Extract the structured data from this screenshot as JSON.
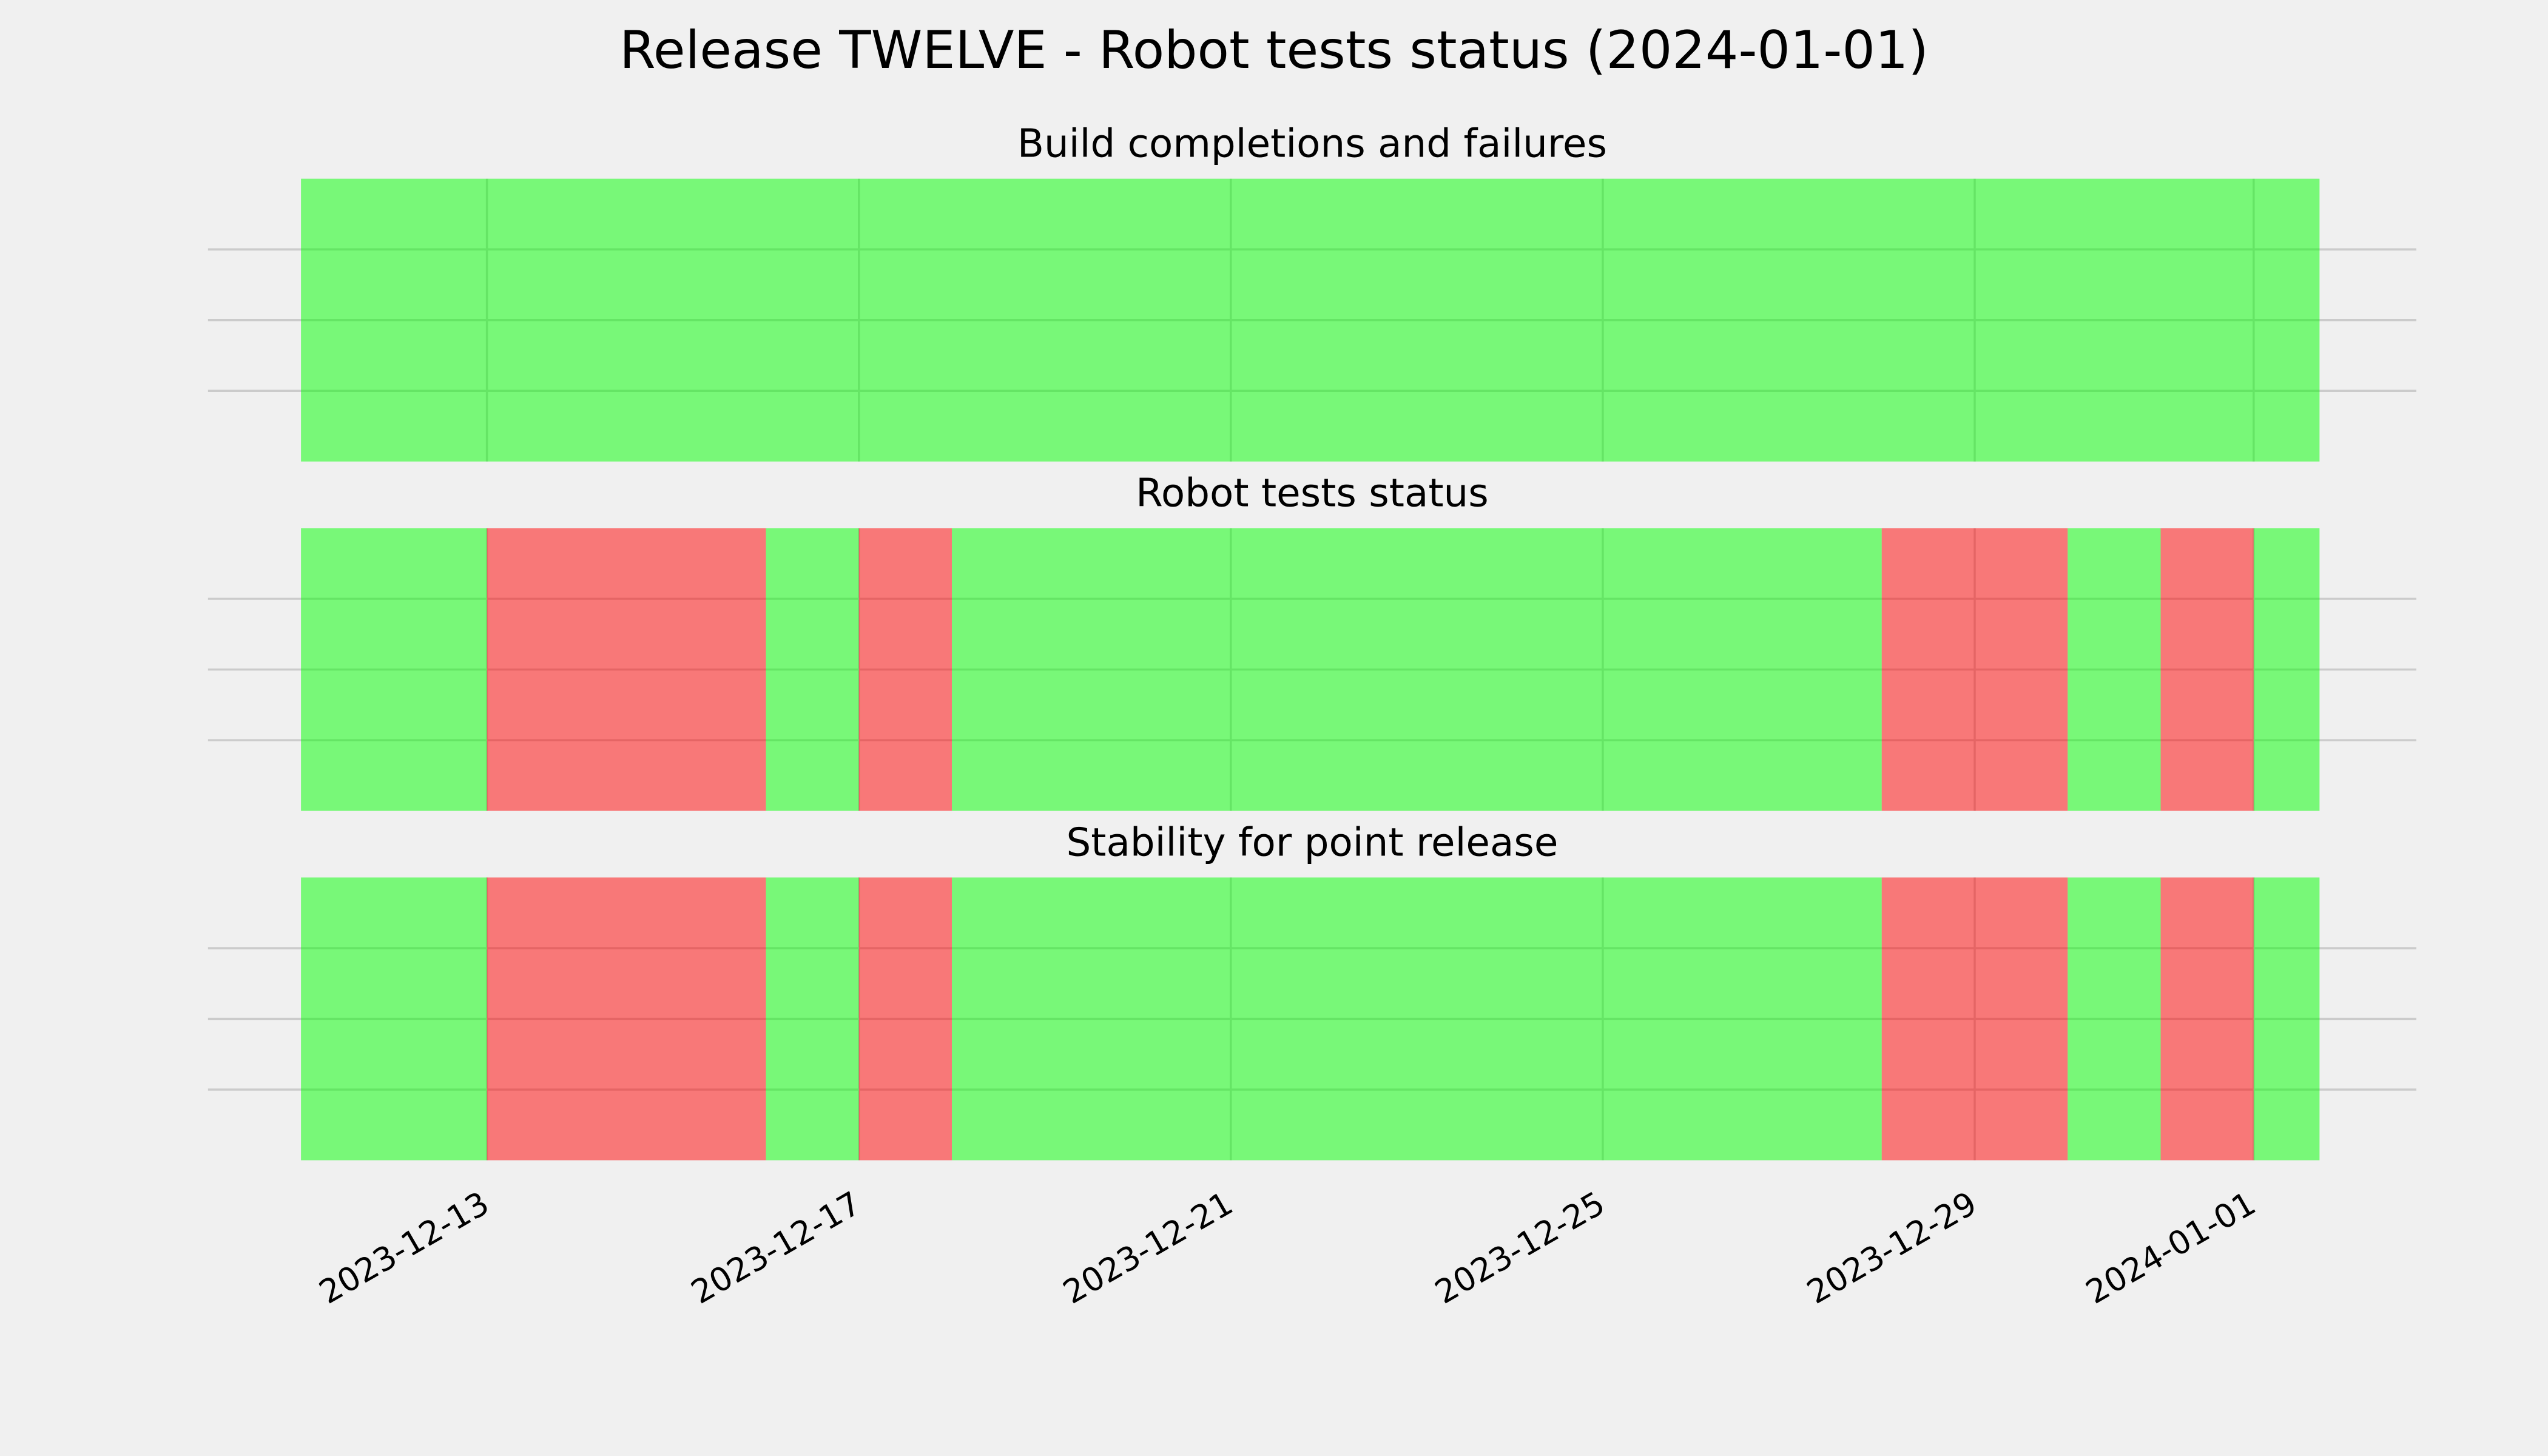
{
  "chart_data": {
    "type": "span",
    "title": "Release TWELVE - Robot tests status (2024-01-01)",
    "xlim": [
      "2023-12-10",
      "2024-01-02T18:00"
    ],
    "xticks": [
      "2023-12-13",
      "2023-12-17",
      "2023-12-21",
      "2023-12-25",
      "2023-12-29",
      "2024-01-01"
    ],
    "ylim": [
      0,
      1
    ],
    "yticks": [
      0.25,
      0.5,
      0.75
    ],
    "grid": true,
    "alpha": 0.5,
    "panels": [
      {
        "title": "Build completions and failures",
        "edges": [
          "2023-12-11",
          "2024-01-01T17:00"
        ],
        "colors": [
          "#00ff00"
        ]
      },
      {
        "title": "Robot tests status",
        "edges": [
          "2023-12-11",
          "2023-12-13",
          "2023-12-16",
          "2023-12-17",
          "2023-12-18",
          "2023-12-28",
          "2023-12-30",
          "2023-12-31",
          "2024-01-01",
          "2024-01-01T17:00"
        ],
        "colors": [
          "#00ff00",
          "#ff0000",
          "#00ff00",
          "#ff0000",
          "#00ff00",
          "#ff0000",
          "#00ff00",
          "#ff0000",
          "#00ff00"
        ]
      },
      {
        "title": "Stability for point release",
        "edges": [
          "2023-12-11",
          "2023-12-13",
          "2023-12-16",
          "2023-12-17",
          "2023-12-18",
          "2023-12-28",
          "2023-12-30",
          "2023-12-31",
          "2024-01-01",
          "2024-01-01T17:00"
        ],
        "colors": [
          "#00ff00",
          "#ff0000",
          "#00ff00",
          "#ff0000",
          "#00ff00",
          "#ff0000",
          "#00ff00",
          "#ff0000",
          "#00ff00"
        ]
      }
    ]
  }
}
